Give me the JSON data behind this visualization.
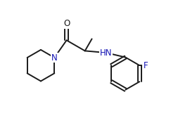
{
  "background_color": "#ffffff",
  "line_color": "#1a1a1a",
  "label_color_N": "#1414b4",
  "label_color_F": "#1414b4",
  "label_color_O": "#1a1a1a",
  "line_width": 1.4,
  "font_size_atoms": 8.5,
  "fig_width": 2.7,
  "fig_height": 1.85,
  "dpi": 100,
  "xlim": [
    0,
    10
  ],
  "ylim": [
    0,
    7
  ]
}
